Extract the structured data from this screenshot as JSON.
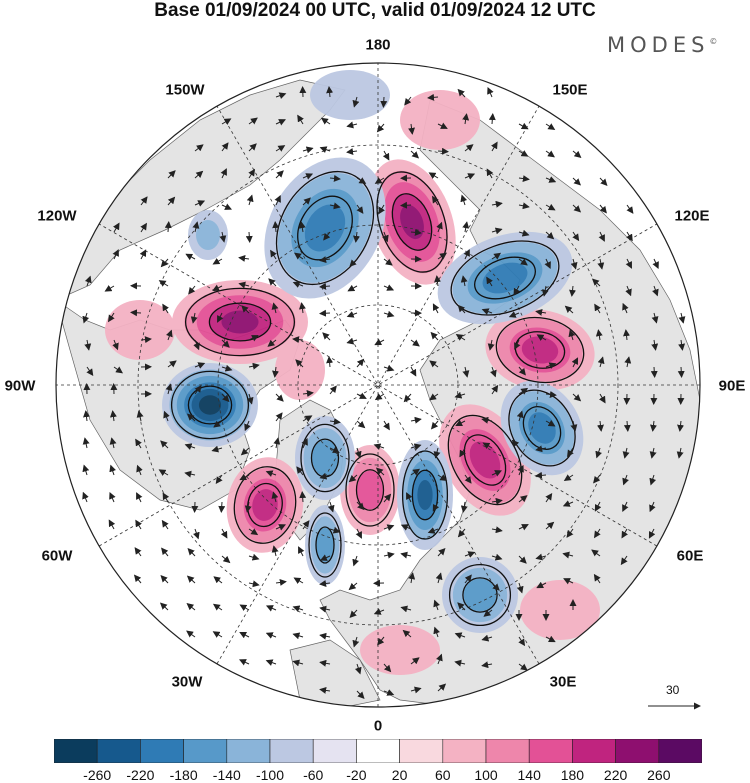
{
  "title": "Base 01/09/2024 00 UTC, valid 01/09/2024 12 UTC",
  "brand": "MODES",
  "brand_mark": "©",
  "lon_labels": {
    "top": "180",
    "top_left": "150W",
    "top_right": "150E",
    "upper_left": "120W",
    "upper_right": "120E",
    "left": "90W",
    "right": "90E",
    "lower_left": "60W",
    "lower_right": "60E",
    "bottom_left": "30W",
    "bottom_right": "30E",
    "bottom": "0"
  },
  "reference_vector": {
    "value": "30"
  },
  "colorbar": {
    "ticks": [
      "-260",
      "-220",
      "-180",
      "-140",
      "-100",
      "-60",
      "-20",
      "20",
      "60",
      "100",
      "140",
      "180",
      "220",
      "260"
    ],
    "colors": [
      "#0b3c5d",
      "#16598d",
      "#2f7bb5",
      "#5799c9",
      "#8ab4d9",
      "#bcc8e2",
      "#e5e3f1",
      "#ffffff",
      "#f9d9df",
      "#f4b2c3",
      "#ee86ab",
      "#e35196",
      "#c0247f",
      "#8e0f6f",
      "#5b0a63"
    ]
  },
  "colors": {
    "positive": "#e35196",
    "negative": "#2f7bb5",
    "land": "#e6e6e6",
    "ocean": "#ffffff"
  }
}
